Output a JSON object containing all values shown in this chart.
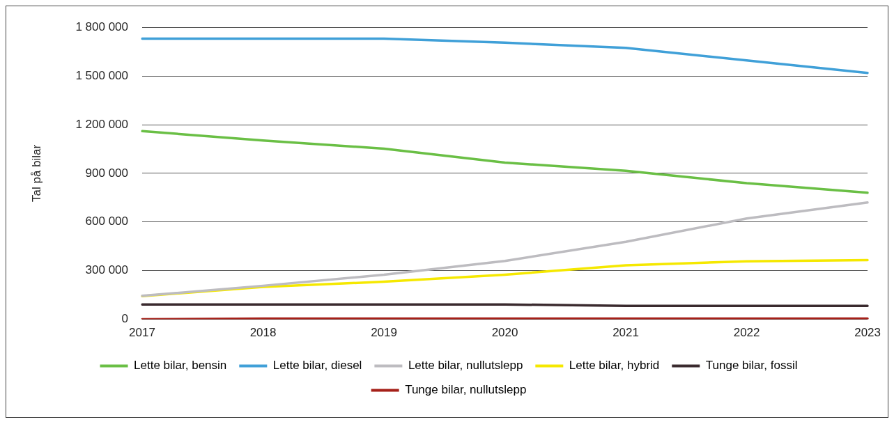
{
  "chart_data": {
    "type": "line",
    "ylabel": "Tal på bilar",
    "categories": [
      "2017",
      "2018",
      "2019",
      "2020",
      "2021",
      "2022",
      "2023"
    ],
    "series": [
      {
        "name": "Lette bilar, bensin",
        "color": "#6abf45",
        "values": [
          1160000,
          1102000,
          1052000,
          966000,
          916000,
          839000,
          780000
        ]
      },
      {
        "name": "Lette bilar, diesel",
        "color": "#40a0d8",
        "values": [
          1730000,
          1730000,
          1730000,
          1705000,
          1673000,
          1596000,
          1519000
        ]
      },
      {
        "name": "Lette bilar, nullutslepp",
        "color": "#bdbcc0",
        "values": [
          145000,
          207000,
          275000,
          360000,
          478000,
          622000,
          720000
        ]
      },
      {
        "name": "Lette bilar, hybrid",
        "color": "#f5e800",
        "values": [
          143000,
          200000,
          232000,
          275000,
          333000,
          358000,
          365000
        ]
      },
      {
        "name": "Tunge bilar, fossil",
        "color": "#3a2a2e",
        "values": [
          92000,
          92000,
          92000,
          92000,
          83000,
          83000,
          83000
        ]
      },
      {
        "name": "Tunge bilar, nullutslepp",
        "color": "#a52019",
        "values": [
          0,
          5000,
          5000,
          5000,
          5000,
          5000,
          5000
        ]
      }
    ],
    "ylim": [
      0,
      1800000
    ],
    "yticks": [
      {
        "value": 0,
        "label": "0"
      },
      {
        "value": 300000,
        "label": "300 000"
      },
      {
        "value": 600000,
        "label": "600 000"
      },
      {
        "value": 900000,
        "label": "900 000"
      },
      {
        "value": 1200000,
        "label": "1 200 000"
      },
      {
        "value": 1500000,
        "label": "1 500 000"
      },
      {
        "value": 1800000,
        "label": "1 800 000"
      }
    ],
    "grid": "y",
    "legend": "bottom",
    "marker": "none",
    "line_style": "solid"
  }
}
